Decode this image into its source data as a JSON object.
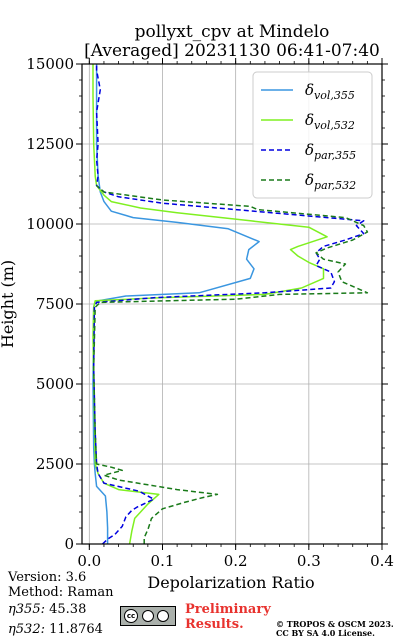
{
  "chart_data": {
    "type": "line",
    "title_line1": "pollyxt_cpv at Mindelo",
    "title_line2": "[Averaged] 20231130 06:41-07:40",
    "xlabel": "Depolarization Ratio",
    "ylabel": "Height (m)",
    "xlim": [
      -0.01,
      0.4
    ],
    "ylim": [
      0,
      15000
    ],
    "xticks": [
      "0.0",
      "0.1",
      "0.2",
      "0.3",
      "0.4"
    ],
    "xtick_values": [
      0,
      0.1,
      0.2,
      0.3,
      0.4
    ],
    "yticks": [
      "0",
      "2500",
      "5000",
      "7500",
      "10000",
      "12500",
      "15000"
    ],
    "ytick_values": [
      0,
      2500,
      5000,
      7500,
      10000,
      12500,
      15000
    ],
    "grid": true,
    "legend_position": "top-right",
    "series": [
      {
        "name": "δvol,355",
        "symbol": "δ",
        "subscript": "vol,355",
        "color": "#3a96e0",
        "dash": "solid",
        "points": [
          [
            0.025,
            0
          ],
          [
            0.025,
            500
          ],
          [
            0.024,
            1000
          ],
          [
            0.022,
            1500
          ],
          [
            0.01,
            1800
          ],
          [
            0.008,
            2200
          ],
          [
            0.007,
            2500
          ],
          [
            0.006,
            3000
          ],
          [
            0.005,
            5000
          ],
          [
            0.006,
            7400
          ],
          [
            0.008,
            7580
          ],
          [
            0.05,
            7750
          ],
          [
            0.15,
            7850
          ],
          [
            0.22,
            8300
          ],
          [
            0.225,
            8600
          ],
          [
            0.215,
            8900
          ],
          [
            0.218,
            9200
          ],
          [
            0.232,
            9450
          ],
          [
            0.19,
            9850
          ],
          [
            0.12,
            10050
          ],
          [
            0.06,
            10200
          ],
          [
            0.03,
            10400
          ],
          [
            0.02,
            10700
          ],
          [
            0.015,
            11000
          ],
          [
            0.012,
            11500
          ],
          [
            0.01,
            12500
          ],
          [
            0.01,
            14000
          ],
          [
            0.01,
            15000
          ]
        ]
      },
      {
        "name": "δvol,532",
        "symbol": "δ",
        "subscript": "vol,532",
        "color": "#7ff020",
        "dash": "solid",
        "points": [
          [
            0.055,
            0
          ],
          [
            0.058,
            400
          ],
          [
            0.062,
            800
          ],
          [
            0.08,
            1250
          ],
          [
            0.095,
            1550
          ],
          [
            0.04,
            1700
          ],
          [
            0.02,
            1900
          ],
          [
            0.012,
            2200
          ],
          [
            0.008,
            2500
          ],
          [
            0.007,
            4000
          ],
          [
            0.005,
            6500
          ],
          [
            0.006,
            7400
          ],
          [
            0.008,
            7600
          ],
          [
            0.1,
            7700
          ],
          [
            0.24,
            7800
          ],
          [
            0.29,
            8000
          ],
          [
            0.32,
            8300
          ],
          [
            0.32,
            8600
          ],
          [
            0.3,
            8800
          ],
          [
            0.285,
            9000
          ],
          [
            0.275,
            9200
          ],
          [
            0.285,
            9300
          ],
          [
            0.325,
            9600
          ],
          [
            0.3,
            9900
          ],
          [
            0.22,
            10100
          ],
          [
            0.12,
            10350
          ],
          [
            0.07,
            10500
          ],
          [
            0.03,
            10700
          ],
          [
            0.02,
            10900
          ],
          [
            0.01,
            11200
          ],
          [
            0.008,
            11500
          ],
          [
            0.006,
            12500
          ],
          [
            0.005,
            14000
          ],
          [
            0.005,
            15000
          ]
        ]
      },
      {
        "name": "δpar,355",
        "symbol": "δ",
        "subscript": "par,355",
        "color": "#0000e0",
        "dash": "dashed",
        "points": [
          [
            0.018,
            0
          ],
          [
            0.025,
            150
          ],
          [
            0.035,
            300
          ],
          [
            0.045,
            550
          ],
          [
            0.05,
            850
          ],
          [
            0.058,
            1050
          ],
          [
            0.065,
            1150
          ],
          [
            0.088,
            1400
          ],
          [
            0.068,
            1650
          ],
          [
            0.02,
            1900
          ],
          [
            0.012,
            2200
          ],
          [
            0.01,
            2500
          ],
          [
            0.008,
            3500
          ],
          [
            0.006,
            5500
          ],
          [
            0.007,
            7400
          ],
          [
            0.01,
            7550
          ],
          [
            0.09,
            7700
          ],
          [
            0.24,
            7850
          ],
          [
            0.33,
            8000
          ],
          [
            0.335,
            8200
          ],
          [
            0.33,
            8500
          ],
          [
            0.31,
            8700
          ],
          [
            0.315,
            8900
          ],
          [
            0.31,
            9100
          ],
          [
            0.32,
            9300
          ],
          [
            0.35,
            9500
          ],
          [
            0.375,
            9700
          ],
          [
            0.365,
            9950
          ],
          [
            0.375,
            10100
          ],
          [
            0.2,
            10450
          ],
          [
            0.1,
            10650
          ],
          [
            0.04,
            10850
          ],
          [
            0.02,
            11000
          ],
          [
            0.01,
            11200
          ],
          [
            0.012,
            11500
          ],
          [
            0.01,
            12000
          ],
          [
            0.012,
            12500
          ],
          [
            0.01,
            13500
          ],
          [
            0.015,
            14200
          ],
          [
            0.01,
            14800
          ],
          [
            0.01,
            15000
          ]
        ]
      },
      {
        "name": "δpar,532",
        "symbol": "δ",
        "subscript": "par,532",
        "color": "#1a7a1a",
        "dash": "dashed",
        "points": [
          [
            0.075,
            0
          ],
          [
            0.075,
            200
          ],
          [
            0.08,
            450
          ],
          [
            0.085,
            800
          ],
          [
            0.1,
            1100
          ],
          [
            0.13,
            1300
          ],
          [
            0.155,
            1450
          ],
          [
            0.175,
            1550
          ],
          [
            0.12,
            1700
          ],
          [
            0.08,
            1850
          ],
          [
            0.04,
            2000
          ],
          [
            0.02,
            2150
          ],
          [
            0.045,
            2300
          ],
          [
            0.03,
            2400
          ],
          [
            0.01,
            2500
          ],
          [
            0.008,
            3500
          ],
          [
            0.006,
            5500
          ],
          [
            0.008,
            7400
          ],
          [
            0.015,
            7550
          ],
          [
            0.2,
            7650
          ],
          [
            0.26,
            7800
          ],
          [
            0.38,
            7850
          ],
          [
            0.345,
            8200
          ],
          [
            0.34,
            8500
          ],
          [
            0.35,
            8750
          ],
          [
            0.32,
            8900
          ],
          [
            0.31,
            9100
          ],
          [
            0.325,
            9250
          ],
          [
            0.36,
            9500
          ],
          [
            0.38,
            9750
          ],
          [
            0.375,
            9950
          ],
          [
            0.35,
            10200
          ],
          [
            0.23,
            10450
          ],
          [
            0.22,
            10550
          ],
          [
            0.1,
            10750
          ],
          [
            0.02,
            11000
          ],
          [
            0.01,
            11200
          ]
        ]
      }
    ]
  },
  "footer": {
    "version": "Version: 3.6",
    "method": "Method: Raman",
    "eta355_sym": "η355:",
    "eta355_val": "45.38",
    "eta532_sym": "η532:",
    "eta532_val": "11.8764",
    "preliminary": "Preliminary Results.",
    "license_line1": "© TROPOS & OSCM 2023.",
    "license_line2": "CC BY SA 4.0 License.",
    "cc_logo": "cc",
    "cc_by_icon": "person-icon",
    "cc_sa_icon": "share-alike-icon"
  }
}
